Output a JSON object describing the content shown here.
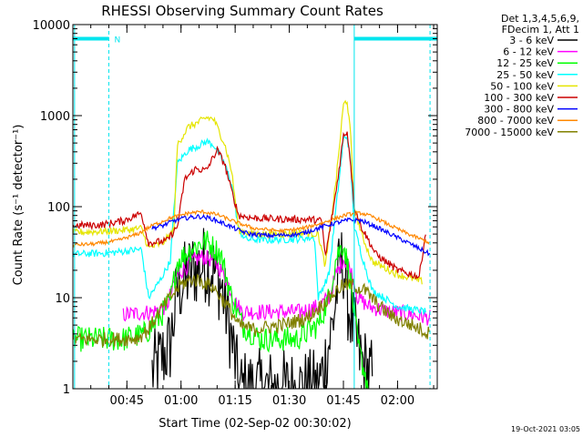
{
  "chart_data": {
    "type": "line",
    "title": "RHESSI Observing Summary Count Rates",
    "xlabel": "Start Time (02-Sep-02 00:30:02)",
    "ylabel": "Count Rate (s⁻¹ detector⁻¹)",
    "xlim": [
      "00:30:02",
      "02:11:00"
    ],
    "ylim": [
      1,
      10000
    ],
    "yscale": "log",
    "x_ticks": [
      "00:45",
      "01:00",
      "01:15",
      "01:30",
      "01:45",
      "02:00"
    ],
    "y_ticks": [
      "1",
      "10",
      "100",
      "1000",
      "10000"
    ],
    "legend_header": [
      "Det 1,3,4,5,6,9,",
      "FDecim 1, Att 1"
    ],
    "legend_position": "right",
    "timestamp": "19-Oct-2021 03:05",
    "night_flag_label": "N",
    "flag_level": 7000,
    "flag_color": "#00e5ee",
    "flag_segments": [
      [
        "00:30:02",
        "00:40:00"
      ],
      [
        "01:48:00",
        "02:11:00"
      ]
    ],
    "vertical_markers": [
      {
        "time": "00:30:30",
        "style": "solid"
      },
      {
        "time": "00:40:00",
        "style": "dashed"
      },
      {
        "time": "01:48:00",
        "style": "solid"
      },
      {
        "time": "02:09:00",
        "style": "dashed"
      }
    ],
    "series": [
      {
        "name": "3 - 6 keV",
        "color": "#000000",
        "noise": 0.45,
        "points": [
          [
            "00:52:00",
            1.5
          ],
          [
            "00:57:00",
            3
          ],
          [
            "00:59:00",
            12
          ],
          [
            "01:03:00",
            20
          ],
          [
            "01:07:00",
            24
          ],
          [
            "01:09:00",
            20
          ],
          [
            "01:11:00",
            14
          ],
          [
            "01:13:00",
            6
          ],
          [
            "01:15:00",
            2
          ],
          [
            "01:16:00",
            1
          ],
          [
            "01:38:00",
            1
          ],
          [
            "01:40:00",
            2
          ],
          [
            "01:42:00",
            5
          ],
          [
            "01:44:00",
            22
          ],
          [
            "01:45:00",
            25
          ],
          [
            "01:46:00",
            10
          ],
          [
            "01:48:00",
            4
          ],
          [
            "01:50:00",
            2
          ],
          [
            "01:53:00",
            1.3
          ]
        ]
      },
      {
        "name": "6 - 12 keV",
        "color": "#ff00ff",
        "noise": 0.09,
        "points": [
          [
            "00:44:00",
            6.5
          ],
          [
            "00:52:00",
            7
          ],
          [
            "00:56:00",
            8
          ],
          [
            "00:59:00",
            18
          ],
          [
            "01:03:00",
            25
          ],
          [
            "01:06:00",
            28
          ],
          [
            "01:09:00",
            26
          ],
          [
            "01:12:00",
            18
          ],
          [
            "01:15:00",
            9
          ],
          [
            "01:17:00",
            7
          ],
          [
            "01:25:00",
            7
          ],
          [
            "01:33:00",
            7
          ],
          [
            "01:38:00",
            8
          ],
          [
            "01:41:00",
            10
          ],
          [
            "01:43:00",
            18
          ],
          [
            "01:45:00",
            27
          ],
          [
            "01:47:00",
            20
          ],
          [
            "01:49:00",
            10
          ],
          [
            "01:52:00",
            8
          ],
          [
            "01:58:00",
            7
          ],
          [
            "02:04:00",
            6.5
          ],
          [
            "02:09:00",
            6
          ]
        ]
      },
      {
        "name": "12 - 25 keV",
        "color": "#00ff00",
        "noise": 0.14,
        "points": [
          [
            "00:30:02",
            3.5
          ],
          [
            "00:44:00",
            3.5
          ],
          [
            "00:50:00",
            4
          ],
          [
            "00:54:00",
            6
          ],
          [
            "00:57:00",
            9
          ],
          [
            "00:59:00",
            25
          ],
          [
            "01:03:00",
            35
          ],
          [
            "01:07:00",
            42
          ],
          [
            "01:11:00",
            30
          ],
          [
            "01:14:00",
            10
          ],
          [
            "01:17:00",
            5
          ],
          [
            "01:22:00",
            3.5
          ],
          [
            "01:32:00",
            3.5
          ],
          [
            "01:38:00",
            5
          ],
          [
            "01:41:00",
            10
          ],
          [
            "01:43:00",
            28
          ],
          [
            "01:45:00",
            40
          ],
          [
            "01:47:00",
            15
          ],
          [
            "01:49:00",
            3
          ],
          [
            "01:52:00",
            1
          ]
        ]
      },
      {
        "name": "25 - 50 keV",
        "color": "#00ffff",
        "noise": 0.04,
        "points": [
          [
            "00:30:02",
            30
          ],
          [
            "00:40:00",
            31
          ],
          [
            "00:46:00",
            33
          ],
          [
            "00:49:00",
            34
          ],
          [
            "00:51:00",
            10
          ],
          [
            "00:54:00",
            15
          ],
          [
            "00:57:00",
            25
          ],
          [
            "00:59:00",
            300
          ],
          [
            "01:02:00",
            420
          ],
          [
            "01:05:00",
            470
          ],
          [
            "01:07:00",
            520
          ],
          [
            "01:09:00",
            480
          ],
          [
            "01:12:00",
            300
          ],
          [
            "01:14:00",
            180
          ],
          [
            "01:16:00",
            55
          ],
          [
            "01:18:00",
            44
          ],
          [
            "01:24:00",
            43
          ],
          [
            "01:32:00",
            44
          ],
          [
            "01:37:00",
            46
          ],
          [
            "01:38:00",
            10
          ],
          [
            "01:41:00",
            18
          ],
          [
            "01:43:00",
            100
          ],
          [
            "01:45:00",
            550
          ],
          [
            "01:46:00",
            600
          ],
          [
            "01:47:00",
            300
          ],
          [
            "01:48:00",
            60
          ],
          [
            "01:50:00",
            30
          ],
          [
            "01:53:00",
            12
          ],
          [
            "02:00:00",
            8
          ],
          [
            "02:08:00",
            7
          ]
        ]
      },
      {
        "name": "50 - 100 keV",
        "color": "#e5e500",
        "noise": 0.04,
        "points": [
          [
            "00:30:02",
            52
          ],
          [
            "00:40:00",
            54
          ],
          [
            "00:46:00",
            56
          ],
          [
            "00:49:00",
            58
          ],
          [
            "00:51:00",
            35
          ],
          [
            "00:55:00",
            40
          ],
          [
            "00:58:00",
            55
          ],
          [
            "00:59:00",
            480
          ],
          [
            "01:02:00",
            750
          ],
          [
            "01:05:00",
            850
          ],
          [
            "01:07:00",
            950
          ],
          [
            "01:09:00",
            920
          ],
          [
            "01:12:00",
            500
          ],
          [
            "01:14:00",
            250
          ],
          [
            "01:16:00",
            55
          ],
          [
            "01:20:00",
            50
          ],
          [
            "01:28:00",
            50
          ],
          [
            "01:33:00",
            52
          ],
          [
            "01:38:00",
            50
          ],
          [
            "01:40:00",
            22
          ],
          [
            "01:43:00",
            200
          ],
          [
            "01:45:00",
            1300
          ],
          [
            "01:46:00",
            1500
          ],
          [
            "01:47:00",
            600
          ],
          [
            "01:48:00",
            100
          ],
          [
            "01:50:00",
            50
          ],
          [
            "01:53:00",
            25
          ],
          [
            "02:00:00",
            18
          ],
          [
            "02:07:00",
            15
          ]
        ]
      },
      {
        "name": "100 - 300 keV",
        "color": "#cc0000",
        "noise": 0.04,
        "points": [
          [
            "00:30:02",
            62
          ],
          [
            "00:38:00",
            63
          ],
          [
            "00:44:00",
            70
          ],
          [
            "00:49:00",
            85
          ],
          [
            "00:51:00",
            40
          ],
          [
            "00:56:00",
            42
          ],
          [
            "00:59:00",
            60
          ],
          [
            "01:01:00",
            200
          ],
          [
            "01:04:00",
            260
          ],
          [
            "01:07:00",
            250
          ],
          [
            "01:10:00",
            420
          ],
          [
            "01:12:00",
            300
          ],
          [
            "01:14:00",
            150
          ],
          [
            "01:16:00",
            80
          ],
          [
            "01:20:00",
            75
          ],
          [
            "01:28:00",
            73
          ],
          [
            "01:36:00",
            72
          ],
          [
            "01:39:00",
            70
          ],
          [
            "01:40:00",
            28
          ],
          [
            "01:43:00",
            150
          ],
          [
            "01:45:00",
            600
          ],
          [
            "01:46:00",
            680
          ],
          [
            "01:47:00",
            300
          ],
          [
            "01:48:00",
            100
          ],
          [
            "01:50:00",
            60
          ],
          [
            "01:54:00",
            30
          ],
          [
            "02:00:00",
            20
          ],
          [
            "02:06:00",
            17
          ],
          [
            "02:08:00",
            60
          ]
        ]
      },
      {
        "name": "300 - 800 keV",
        "color": "#0000ff",
        "noise": 0.025,
        "points": [
          [
            "00:52:00",
            58
          ],
          [
            "00:55:00",
            62
          ],
          [
            "00:58:00",
            70
          ],
          [
            "01:01:00",
            75
          ],
          [
            "01:05:00",
            78
          ],
          [
            "01:08:00",
            75
          ],
          [
            "01:12:00",
            65
          ],
          [
            "01:16:00",
            55
          ],
          [
            "01:19:00",
            50
          ],
          [
            "01:25:00",
            48
          ],
          [
            "01:33:00",
            50
          ],
          [
            "01:38:00",
            58
          ],
          [
            "01:42:00",
            65
          ],
          [
            "01:47:00",
            72
          ],
          [
            "01:50:00",
            70
          ],
          [
            "01:54:00",
            60
          ],
          [
            "01:58:00",
            50
          ],
          [
            "02:03:00",
            40
          ],
          [
            "02:09:00",
            30
          ]
        ]
      },
      {
        "name": "800 - 7000 keV",
        "color": "#ff8800",
        "noise": 0.02,
        "points": [
          [
            "00:30:02",
            38
          ],
          [
            "00:36:00",
            39
          ],
          [
            "00:42:00",
            42
          ],
          [
            "00:48:00",
            50
          ],
          [
            "00:52:00",
            62
          ],
          [
            "00:57:00",
            75
          ],
          [
            "01:02:00",
            85
          ],
          [
            "01:06:00",
            88
          ],
          [
            "01:10:00",
            82
          ],
          [
            "01:15:00",
            68
          ],
          [
            "01:20:00",
            58
          ],
          [
            "01:28:00",
            54
          ],
          [
            "01:34:00",
            58
          ],
          [
            "01:40:00",
            68
          ],
          [
            "01:46:00",
            82
          ],
          [
            "01:50:00",
            85
          ],
          [
            "01:54:00",
            75
          ],
          [
            "01:58:00",
            62
          ],
          [
            "02:03:00",
            50
          ],
          [
            "02:09:00",
            40
          ]
        ]
      },
      {
        "name": "7000 - 15000 keV",
        "color": "#808000",
        "noise": 0.08,
        "points": [
          [
            "00:30:02",
            3.5
          ],
          [
            "00:44:00",
            3.5
          ],
          [
            "00:48:00",
            3.6
          ],
          [
            "00:51:00",
            4.5
          ],
          [
            "00:54:00",
            7
          ],
          [
            "00:57:00",
            10
          ],
          [
            "01:00:00",
            14
          ],
          [
            "01:03:00",
            16
          ],
          [
            "01:06:00",
            15
          ],
          [
            "01:09:00",
            13
          ],
          [
            "01:13:00",
            8
          ],
          [
            "01:16:00",
            5
          ],
          [
            "01:20:00",
            4.5
          ],
          [
            "01:28:00",
            5
          ],
          [
            "01:35:00",
            6
          ],
          [
            "01:40:00",
            9
          ],
          [
            "01:44:00",
            13
          ],
          [
            "01:47:00",
            14
          ],
          [
            "01:51:00",
            12
          ],
          [
            "01:55:00",
            8
          ],
          [
            "01:59:00",
            6
          ],
          [
            "02:04:00",
            5
          ],
          [
            "02:09:00",
            4
          ]
        ]
      }
    ]
  }
}
